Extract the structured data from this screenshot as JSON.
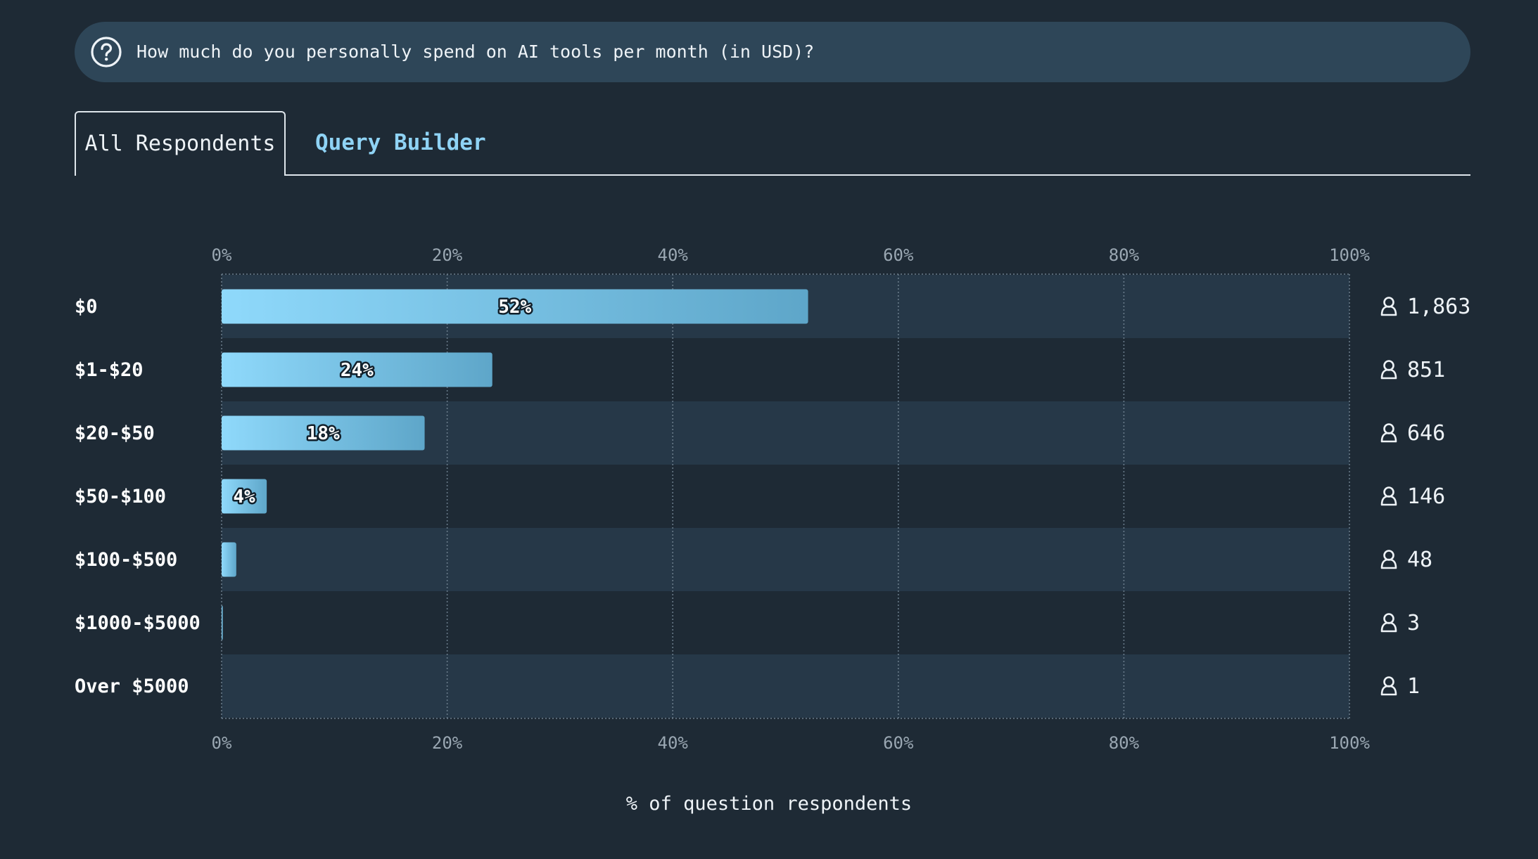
{
  "question": {
    "icon": "question-circle-icon",
    "text": "How much do you personally spend on AI tools per month (in USD)?"
  },
  "tabs": [
    {
      "label": "All Respondents",
      "active": true
    },
    {
      "label": "Query Builder",
      "active": false
    }
  ],
  "chart_data": {
    "type": "bar",
    "orientation": "horizontal",
    "categories": [
      "$0",
      "$1-$20",
      "$20-$50",
      "$50-$100",
      "$100-$500",
      "$1000-$5000",
      "Over $5000"
    ],
    "values": [
      52,
      24,
      18,
      4,
      1.3,
      0.1,
      0
    ],
    "data_labels": [
      "52%",
      "24%",
      "18%",
      "4%",
      "",
      "",
      ""
    ],
    "counts": [
      "1,863",
      "851",
      "646",
      "146",
      "48",
      "3",
      "1"
    ],
    "count_icon": "user-icon",
    "xlim": [
      0,
      100
    ],
    "xticks": [
      "0%",
      "20%",
      "40%",
      "60%",
      "80%",
      "100%"
    ],
    "xtick_values": [
      0,
      20,
      40,
      60,
      80,
      100
    ],
    "xlabel": "% of question respondents",
    "grid": true,
    "colors": {
      "bar_start": "#8fd9fb",
      "bar_end": "#5ea6c9",
      "row_band": "#263848",
      "grid": "#6b7d8c",
      "tick_text": "#9aa7b2",
      "label_text": "#ffffff"
    }
  }
}
